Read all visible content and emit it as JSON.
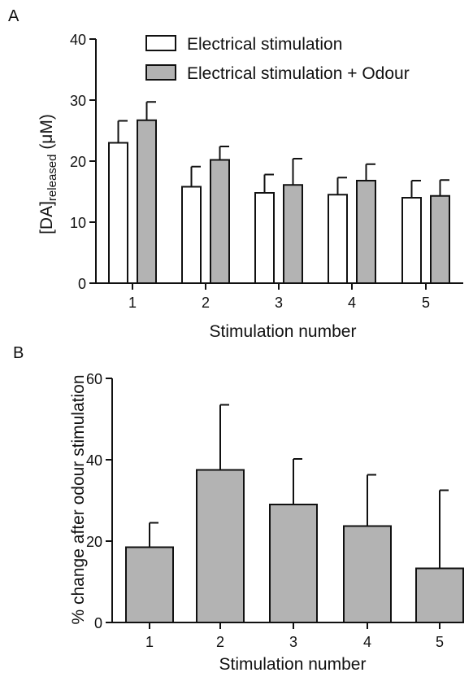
{
  "chart_data": [
    {
      "panel": "A",
      "type": "bar",
      "xlabel": "Stimulation number",
      "ylabel_main": "[DA]",
      "ylabel_sub": "released",
      "ylabel_unit": " (μM)",
      "categories": [
        "1",
        "2",
        "3",
        "4",
        "5"
      ],
      "ylim": [
        0,
        40
      ],
      "yticks": [
        "0",
        "10",
        "20",
        "30",
        "40"
      ],
      "legend_position": "top-center",
      "series": [
        {
          "name": "Electrical stimulation",
          "color": "#ffffff",
          "values": [
            23.0,
            15.8,
            14.8,
            14.5,
            14.0
          ],
          "error": [
            3.6,
            3.3,
            3.0,
            2.8,
            2.8
          ]
        },
        {
          "name": "Electrical stimulation + Odour",
          "color": "#b3b3b3",
          "values": [
            26.7,
            20.2,
            16.1,
            16.8,
            14.3
          ],
          "error": [
            3.0,
            2.2,
            4.3,
            2.7,
            2.6
          ]
        }
      ]
    },
    {
      "panel": "B",
      "type": "bar",
      "xlabel": "Stimulation number",
      "ylabel": "% change after odour stimulation",
      "categories": [
        "1",
        "2",
        "3",
        "4",
        "5"
      ],
      "ylim": [
        0,
        60
      ],
      "yticks": [
        "0",
        "20",
        "40",
        "60"
      ],
      "series": [
        {
          "color": "#b3b3b3",
          "values": [
            18.5,
            37.5,
            29.0,
            23.7,
            13.3
          ],
          "error": [
            6.0,
            16.0,
            11.2,
            12.6,
            19.2
          ]
        }
      ]
    }
  ]
}
